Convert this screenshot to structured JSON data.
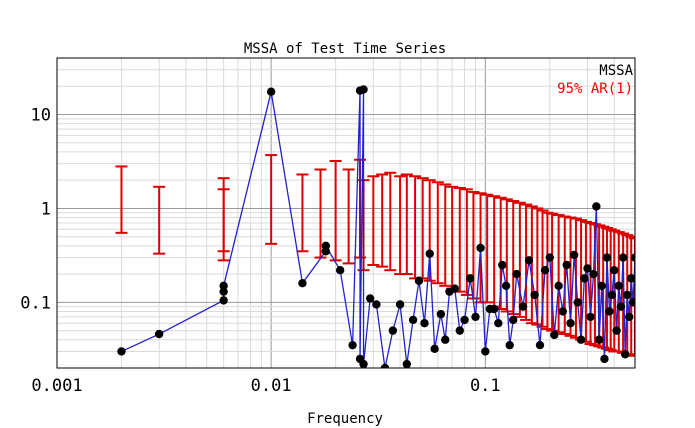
{
  "chart_data": {
    "type": "scatter",
    "title": "MSSA of Test Time Series",
    "xlabel": "Frequency",
    "ylabel": "",
    "xscale": "log",
    "yscale": "log",
    "xlim": [
      0.001,
      0.5
    ],
    "ylim": [
      0.02,
      40
    ],
    "grid": true,
    "x_ticks": [
      {
        "value": 0.001,
        "label": "0.001"
      },
      {
        "value": 0.01,
        "label": "0.01"
      },
      {
        "value": 0.1,
        "label": "0.1"
      }
    ],
    "y_ticks": [
      {
        "value": 0.1,
        "label": "0.1"
      },
      {
        "value": 1,
        "label": "1"
      },
      {
        "value": 10,
        "label": "10"
      }
    ],
    "legend": {
      "placement": "top-right",
      "entries": [
        {
          "name": "MSSA",
          "color": "#000000"
        },
        {
          "name": "95% AR(1)",
          "color": "#ff0000"
        }
      ]
    },
    "colors": {
      "line": "#2222cc",
      "points": "#000000",
      "errorbars": "#dd0000"
    },
    "mssa": {
      "x": [
        0.002,
        0.003,
        0.006,
        0.006,
        0.006,
        0.01,
        0.014,
        0.018,
        0.018,
        0.021,
        0.024,
        0.026,
        0.026,
        0.027,
        0.027,
        0.029,
        0.031,
        0.034,
        0.037,
        0.04,
        0.043,
        0.046,
        0.049,
        0.052,
        0.055,
        0.058,
        0.062,
        0.065,
        0.068,
        0.072,
        0.076,
        0.08,
        0.085,
        0.09,
        0.095,
        0.1,
        0.105,
        0.11,
        0.115,
        0.12,
        0.125,
        0.13,
        0.135,
        0.14,
        0.15,
        0.16,
        0.17,
        0.18,
        0.19,
        0.2,
        0.21,
        0.22,
        0.23,
        0.24,
        0.25,
        0.26,
        0.27,
        0.28,
        0.29,
        0.3,
        0.31,
        0.32,
        0.33,
        0.34,
        0.35,
        0.36,
        0.37,
        0.38,
        0.39,
        0.4,
        0.41,
        0.42,
        0.43,
        0.44,
        0.45,
        0.46,
        0.47,
        0.48,
        0.49,
        0.5
      ],
      "y": [
        0.03,
        0.046,
        0.105,
        0.13,
        0.15,
        17.5,
        0.16,
        0.35,
        0.4,
        0.22,
        0.035,
        18.0,
        0.025,
        18.5,
        0.022,
        0.11,
        0.095,
        0.02,
        0.05,
        0.095,
        0.022,
        0.065,
        0.17,
        0.06,
        0.33,
        0.032,
        0.075,
        0.04,
        0.13,
        0.14,
        0.05,
        0.065,
        0.18,
        0.07,
        0.38,
        0.03,
        0.085,
        0.085,
        0.06,
        0.25,
        0.15,
        0.035,
        0.065,
        0.2,
        0.09,
        0.28,
        0.12,
        0.035,
        0.22,
        0.3,
        0.045,
        0.15,
        0.08,
        0.25,
        0.06,
        0.32,
        0.1,
        0.04,
        0.18,
        0.23,
        0.07,
        0.2,
        1.05,
        0.04,
        0.15,
        0.025,
        0.3,
        0.08,
        0.12,
        0.22,
        0.05,
        0.15,
        0.09,
        0.3,
        0.028,
        0.12,
        0.07,
        0.18,
        0.1,
        0.3
      ]
    },
    "ar1_95": {
      "x": [
        0.002,
        0.003,
        0.006,
        0.006,
        0.01,
        0.014,
        0.017,
        0.02,
        0.023,
        0.026,
        0.027,
        0.03,
        0.033,
        0.036,
        0.04,
        0.043,
        0.047,
        0.051,
        0.055,
        0.06,
        0.065,
        0.07,
        0.076,
        0.082,
        0.088,
        0.095,
        0.102,
        0.11,
        0.118,
        0.126,
        0.135,
        0.145,
        0.155,
        0.165,
        0.175,
        0.185,
        0.195,
        0.205,
        0.22,
        0.235,
        0.25,
        0.265,
        0.28,
        0.295,
        0.31,
        0.325,
        0.34,
        0.355,
        0.37,
        0.385,
        0.4,
        0.42,
        0.44,
        0.46,
        0.48,
        0.5
      ],
      "low": [
        0.55,
        0.33,
        0.35,
        0.28,
        0.42,
        0.35,
        0.3,
        0.28,
        0.26,
        0.3,
        0.22,
        0.25,
        0.24,
        0.22,
        0.2,
        0.2,
        0.18,
        0.18,
        0.17,
        0.16,
        0.15,
        0.14,
        0.13,
        0.12,
        0.11,
        0.1,
        0.1,
        0.09,
        0.085,
        0.08,
        0.075,
        0.07,
        0.065,
        0.06,
        0.058,
        0.055,
        0.052,
        0.05,
        0.048,
        0.046,
        0.044,
        0.042,
        0.04,
        0.038,
        0.036,
        0.035,
        0.034,
        0.033,
        0.032,
        0.031,
        0.03,
        0.03,
        0.029,
        0.028,
        0.028,
        0.027
      ],
      "high": [
        2.8,
        1.7,
        2.1,
        1.6,
        3.7,
        2.3,
        2.6,
        3.2,
        2.6,
        3.3,
        2.0,
        2.2,
        2.3,
        2.4,
        2.2,
        2.3,
        2.2,
        2.1,
        2.0,
        1.9,
        1.8,
        1.7,
        1.65,
        1.6,
        1.5,
        1.45,
        1.4,
        1.35,
        1.3,
        1.25,
        1.2,
        1.15,
        1.1,
        1.05,
        1.0,
        0.95,
        0.9,
        0.88,
        0.85,
        0.82,
        0.8,
        0.78,
        0.75,
        0.72,
        0.7,
        0.68,
        0.66,
        0.64,
        0.62,
        0.6,
        0.58,
        0.56,
        0.54,
        0.52,
        0.5,
        0.48
      ]
    }
  }
}
